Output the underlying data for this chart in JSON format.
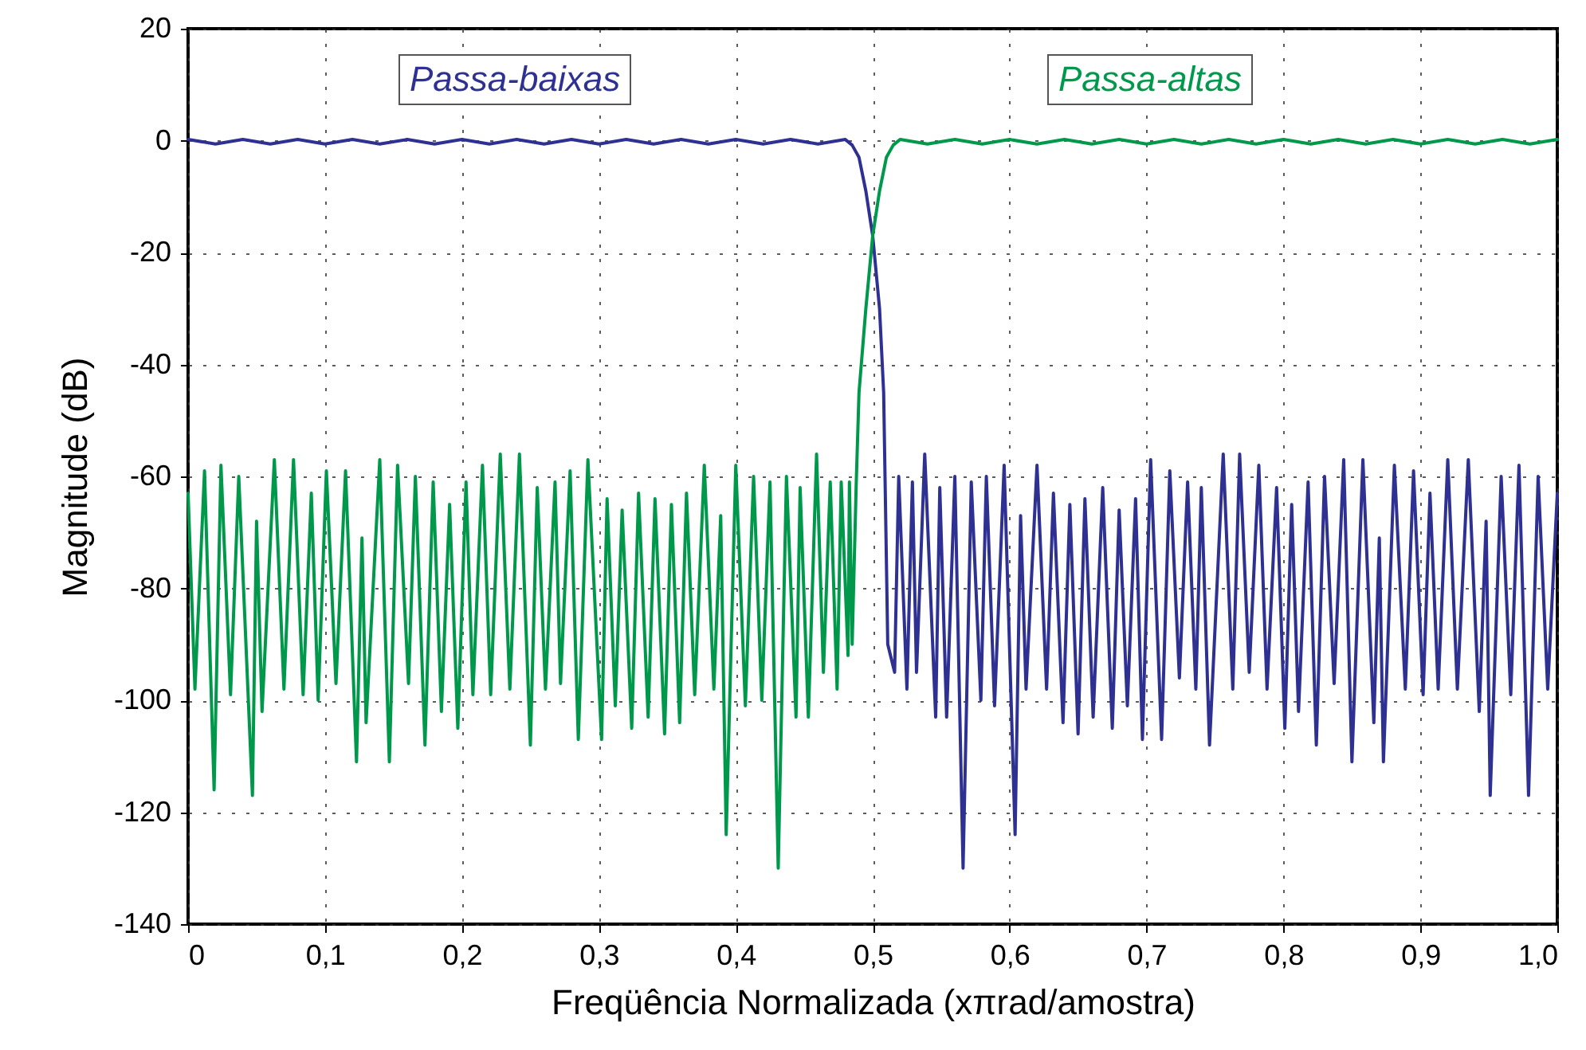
{
  "chart_data": {
    "type": "line",
    "xlabel": "Freqüência Normalizada (xπrad/amostra)",
    "ylabel": "Magnitude (dB)",
    "xlim": [
      0,
      1
    ],
    "ylim": [
      -140,
      20
    ],
    "xticks": [
      0,
      {
        "value": 0.1,
        "label": "0,1"
      },
      {
        "value": 0.2,
        "label": "0,2"
      },
      {
        "value": 0.3,
        "label": "0,3"
      },
      {
        "value": 0.4,
        "label": "0,4"
      },
      {
        "value": 0.5,
        "label": "0,5"
      },
      {
        "value": 0.6,
        "label": "0,6"
      },
      {
        "value": 0.7,
        "label": "0,7"
      },
      {
        "value": 0.8,
        "label": "0,8"
      },
      {
        "value": 0.9,
        "label": "0,9"
      },
      {
        "value": 1,
        "label": "1,0"
      }
    ],
    "yticks": [
      20,
      0,
      -20,
      -40,
      -60,
      -80,
      -100,
      -120,
      -140
    ],
    "grid": true,
    "legend": "top",
    "line_style": "solid",
    "series": [
      {
        "name": "Passa-baixas",
        "color": "#2e3192",
        "x": [
          0,
          0.02,
          0.04,
          0.06,
          0.08,
          0.1,
          0.12,
          0.14,
          0.16,
          0.18,
          0.2,
          0.22,
          0.24,
          0.26,
          0.28,
          0.3,
          0.32,
          0.34,
          0.36,
          0.38,
          0.4,
          0.42,
          0.44,
          0.46,
          0.48,
          0.485,
          0.49,
          0.495,
          0.5,
          0.505,
          0.508,
          0.511,
          0.516,
          0.519,
          0.525,
          0.529,
          0.532,
          0.538,
          0.546,
          0.549,
          0.554,
          0.56,
          0.566,
          0.572,
          0.579,
          0.583,
          0.589,
          0.596,
          0.604,
          0.608,
          0.612,
          0.62,
          0.627,
          0.632,
          0.639,
          0.644,
          0.65,
          0.655,
          0.661,
          0.668,
          0.675,
          0.68,
          0.686,
          0.692,
          0.697,
          0.703,
          0.711,
          0.717,
          0.724,
          0.73,
          0.736,
          0.74,
          0.746,
          0.756,
          0.763,
          0.768,
          0.775,
          0.782,
          0.788,
          0.795,
          0.801,
          0.806,
          0.811,
          0.818,
          0.824,
          0.83,
          0.837,
          0.844,
          0.85,
          0.858,
          0.866,
          0.87,
          0.873,
          0.881,
          0.889,
          0.895,
          0.902,
          0.907,
          0.913,
          0.92,
          0.927,
          0.935,
          0.943,
          0.948,
          0.951,
          0.959,
          0.966,
          0.972,
          0.979,
          0.986,
          0.993,
          1
        ],
        "values": [
          0.2,
          -0.6,
          0.2,
          -0.6,
          0.2,
          -0.6,
          0.2,
          -0.6,
          0.2,
          -0.6,
          0.2,
          -0.6,
          0.2,
          -0.6,
          0.2,
          -0.6,
          0.2,
          -0.6,
          0.2,
          -0.6,
          0.2,
          -0.6,
          0.2,
          -0.6,
          0.2,
          -0.8,
          -3,
          -9,
          -17,
          -30,
          -45,
          -90,
          -95,
          -60,
          -98,
          -61,
          -95,
          -56,
          -103,
          -62,
          -103,
          -60,
          -130,
          -61,
          -100,
          -60,
          -101,
          -58,
          -124,
          -67,
          -98,
          -58,
          -98,
          -63,
          -104,
          -65,
          -106,
          -64,
          -103,
          -62,
          -105,
          -66,
          -101,
          -64,
          -107,
          -57,
          -107,
          -59,
          -96,
          -61,
          -98,
          -62,
          -108,
          -56,
          -98,
          -56,
          -95,
          -58,
          -98,
          -62,
          -105,
          -65,
          -102,
          -61,
          -108,
          -60,
          -97,
          -57,
          -111,
          -57,
          -104,
          -71,
          -111,
          -58,
          -98,
          -59,
          -99,
          -63,
          -98,
          -57,
          -98,
          -57,
          -102,
          -68,
          -117,
          -60,
          -99,
          -58,
          -117,
          -60,
          -98,
          -63
        ]
      },
      {
        "name": "Passa-altas",
        "color": "#00994c",
        "x": [
          0,
          0.005,
          0.012,
          0.019,
          0.024,
          0.031,
          0.037,
          0.047,
          0.05,
          0.054,
          0.063,
          0.07,
          0.077,
          0.084,
          0.09,
          0.095,
          0.101,
          0.108,
          0.115,
          0.123,
          0.127,
          0.13,
          0.14,
          0.147,
          0.153,
          0.161,
          0.166,
          0.173,
          0.179,
          0.185,
          0.191,
          0.197,
          0.203,
          0.208,
          0.215,
          0.221,
          0.228,
          0.235,
          0.242,
          0.25,
          0.255,
          0.261,
          0.268,
          0.272,
          0.279,
          0.285,
          0.292,
          0.302,
          0.306,
          0.312,
          0.317,
          0.324,
          0.329,
          0.336,
          0.341,
          0.348,
          0.353,
          0.359,
          0.364,
          0.37,
          0.377,
          0.384,
          0.389,
          0.393,
          0.4,
          0.407,
          0.413,
          0.419,
          0.425,
          0.431,
          0.437,
          0.444,
          0.447,
          0.453,
          0.459,
          0.464,
          0.469,
          0.474,
          0.477,
          0.482,
          0.483,
          0.485,
          0.488,
          0.49,
          0.495,
          0.5,
          0.505,
          0.51,
          0.515,
          0.52,
          0.54,
          0.56,
          0.58,
          0.6,
          0.62,
          0.64,
          0.66,
          0.68,
          0.7,
          0.72,
          0.74,
          0.76,
          0.78,
          0.8,
          0.82,
          0.84,
          0.86,
          0.88,
          0.9,
          0.92,
          0.94,
          0.96,
          0.98,
          1
        ],
        "values": [
          -63,
          -98,
          -59,
          -116,
          -58,
          -99,
          -60,
          -117,
          -68,
          -102,
          -57,
          -98,
          -57,
          -99,
          -63,
          -100,
          -59,
          -97,
          -59,
          -111,
          -71,
          -104,
          -57,
          -111,
          -58,
          -97,
          -60,
          -108,
          -61,
          -102,
          -65,
          -105,
          -61,
          -99,
          -58,
          -99,
          -56,
          -98,
          -56,
          -108,
          -62,
          -98,
          -61,
          -97,
          -59,
          -107,
          -57,
          -107,
          -64,
          -101,
          -66,
          -105,
          -63,
          -103,
          -64,
          -106,
          -65,
          -104,
          -63,
          -99,
          -58,
          -98,
          -67,
          -124,
          -58,
          -101,
          -60,
          -100,
          -61,
          -130,
          -60,
          -103,
          -62,
          -103,
          -56,
          -95,
          -61,
          -98,
          -61,
          -92,
          -61,
          -90,
          -61,
          -45,
          -30,
          -17,
          -9,
          -3,
          -0.8,
          0.2,
          -0.6,
          0.2,
          -0.6,
          0.2,
          -0.6,
          0.2,
          -0.6,
          0.2,
          -0.6,
          0.2,
          -0.6,
          0.2,
          -0.6,
          0.2,
          -0.6,
          0.2,
          -0.6,
          0.2,
          -0.6,
          0.2,
          -0.6,
          0.2,
          -0.6,
          0.2
        ]
      }
    ]
  }
}
